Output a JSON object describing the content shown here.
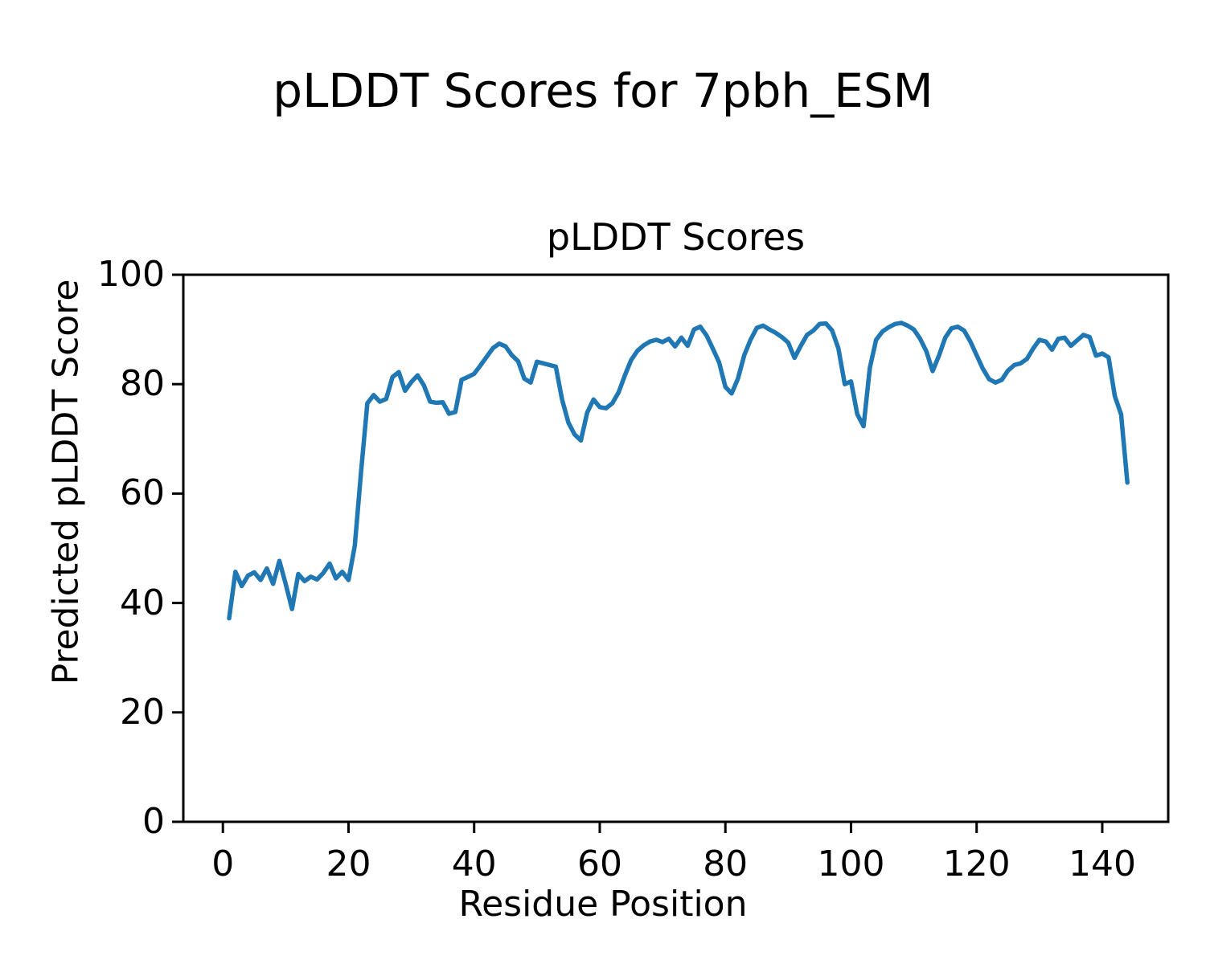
{
  "figure": {
    "title": "pLDDT Scores for 7pbh_ESM"
  },
  "chart_data": {
    "type": "line",
    "title": "pLDDT Scores",
    "xlabel": "Residue Position",
    "ylabel": "Predicted pLDDT Score",
    "x_ticks": [
      0,
      20,
      40,
      60,
      80,
      100,
      120,
      140
    ],
    "y_ticks": [
      0,
      20,
      40,
      60,
      80,
      100
    ],
    "xlim": [
      -6.3,
      150.5
    ],
    "ylim": [
      0,
      100
    ],
    "grid": false,
    "legend": "none",
    "line_color": "#1f77b4",
    "frame_color": "#000000",
    "x_start": 1,
    "x_step": 1,
    "series": [
      {
        "name": "pLDDT",
        "values": [
          37.2,
          45.7,
          43.1,
          45.0,
          45.6,
          44.2,
          46.3,
          43.5,
          47.7,
          43.5,
          38.9,
          45.3,
          44.0,
          44.8,
          44.3,
          45.5,
          47.2,
          44.5,
          45.7,
          44.2,
          50.5,
          64.0,
          76.5,
          78.0,
          76.8,
          77.3,
          81.3,
          82.2,
          78.8,
          80.4,
          81.6,
          79.8,
          76.8,
          76.6,
          76.7,
          74.6,
          74.9,
          80.8,
          81.3,
          81.9,
          83.4,
          85.0,
          86.6,
          87.4,
          86.9,
          85.3,
          84.2,
          81.0,
          80.3,
          84.1,
          83.8,
          83.5,
          83.2,
          77.2,
          73.0,
          70.8,
          69.7,
          74.8,
          77.2,
          75.8,
          75.6,
          76.5,
          78.5,
          81.6,
          84.4,
          86.1,
          87.1,
          87.8,
          88.1,
          87.7,
          88.3,
          86.9,
          88.5,
          87.0,
          90.0,
          90.5,
          88.9,
          86.5,
          84.0,
          79.5,
          78.3,
          81.0,
          85.3,
          88.1,
          90.3,
          90.7,
          90.0,
          89.4,
          88.6,
          87.6,
          84.8,
          87.0,
          89.0,
          89.8,
          91.0,
          91.1,
          89.8,
          86.5,
          80.0,
          80.5,
          74.5,
          72.3,
          83.0,
          88.1,
          89.6,
          90.4,
          91.0,
          91.2,
          90.7,
          90.0,
          88.3,
          86.0,
          82.4,
          85.2,
          88.5,
          90.2,
          90.5,
          89.8,
          87.8,
          85.3,
          82.8,
          80.9,
          80.3,
          80.8,
          82.5,
          83.5,
          83.8,
          84.6,
          86.5,
          88.1,
          87.8,
          86.3,
          88.3,
          88.5,
          87.0,
          88.0,
          89.0,
          88.6,
          85.2,
          85.6,
          84.9,
          77.8,
          74.5,
          62.0
        ]
      }
    ]
  }
}
